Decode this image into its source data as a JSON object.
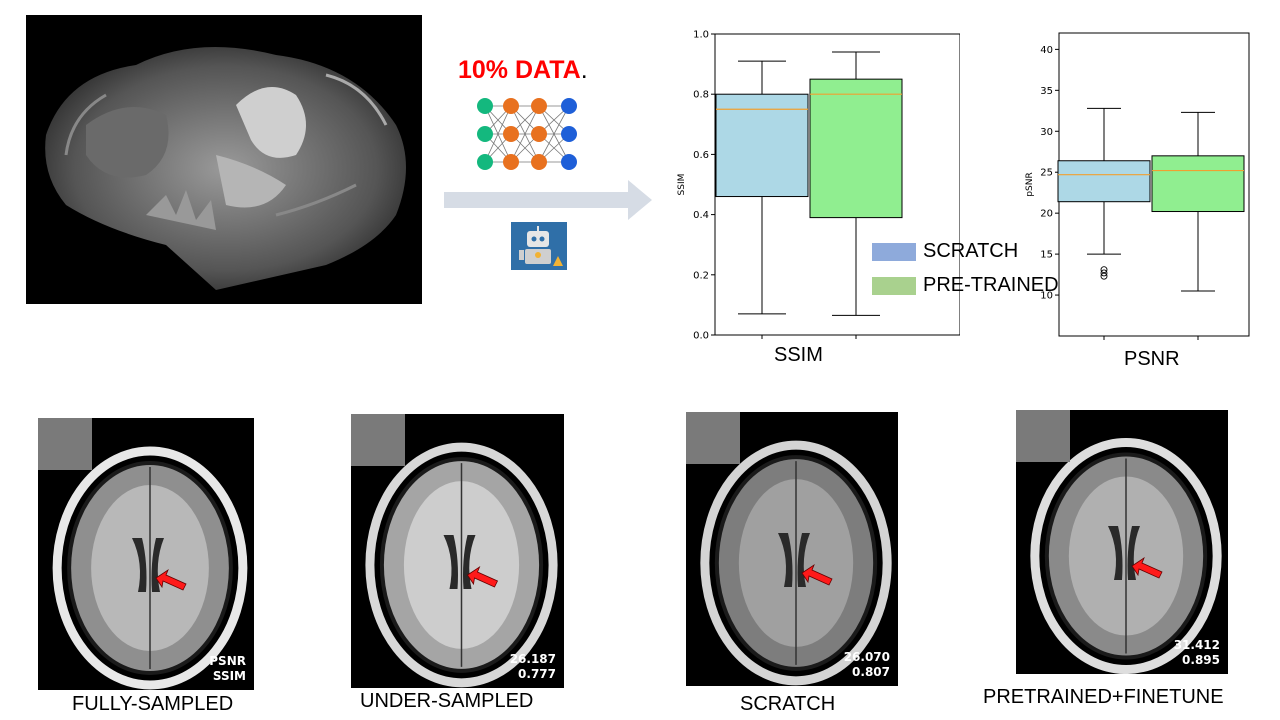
{
  "heading": {
    "label": "10% DATA",
    "trailing": "."
  },
  "legend": {
    "items": [
      {
        "label": "SCRATCH",
        "color": "#8eaadb"
      },
      {
        "label": "PRE-TRAINED",
        "color": "#a9d18e"
      }
    ]
  },
  "chart_data": [
    {
      "type": "box",
      "ylabel": "SSIM",
      "xlabel": "SSIM",
      "ylim": [
        0.0,
        1.0
      ],
      "yticks": [
        "0.0",
        "0.2",
        "0.4",
        "0.6",
        "0.8",
        "1.0"
      ],
      "series": [
        {
          "name": "SCRATCH",
          "color": "#add8e6",
          "whisker_low": 0.07,
          "q1": 0.46,
          "median": 0.75,
          "q3": 0.8,
          "whisker_high": 0.91,
          "outliers": []
        },
        {
          "name": "PRE-TRAINED",
          "color": "#90ee90",
          "whisker_low": 0.065,
          "q1": 0.39,
          "median": 0.8,
          "q3": 0.85,
          "whisker_high": 0.94,
          "outliers": []
        }
      ]
    },
    {
      "type": "box",
      "ylabel": "pSNR",
      "xlabel": "PSNR",
      "ylim": [
        5,
        42
      ],
      "yticks": [
        "10",
        "15",
        "20",
        "25",
        "30",
        "35",
        "40"
      ],
      "series": [
        {
          "name": "SCRATCH",
          "color": "#add8e6",
          "whisker_low": 15.0,
          "q1": 21.4,
          "median": 24.7,
          "q3": 26.4,
          "whisker_high": 32.8,
          "outliers": [
            12.3,
            12.7,
            13.1
          ]
        },
        {
          "name": "PRE-TRAINED",
          "color": "#90ee90",
          "whisker_low": 10.5,
          "q1": 20.2,
          "median": 25.2,
          "q3": 27.0,
          "whisker_high": 32.3,
          "outliers": []
        }
      ]
    }
  ],
  "panels": [
    {
      "caption": "FULLY-SAMPLED",
      "line1": "PSNR",
      "line2": "SSIM"
    },
    {
      "caption": "UNDER-SAMPLED",
      "line1": "26.187",
      "line2": "0.777"
    },
    {
      "caption": "SCRATCH",
      "line1": "26.070",
      "line2": "0.807"
    },
    {
      "caption": "PRETRAINED+FINETUNE",
      "line1": "31.412",
      "line2": "0.895"
    }
  ]
}
